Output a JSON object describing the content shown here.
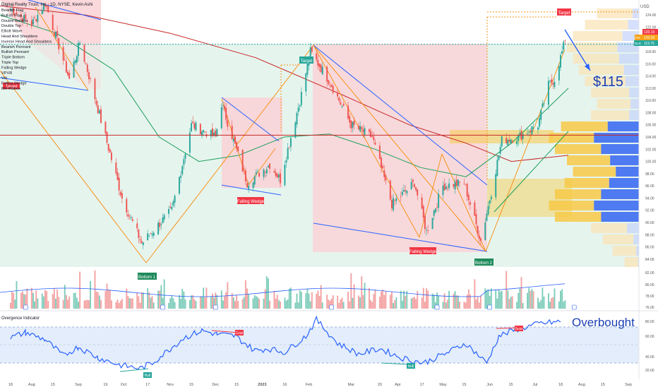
{
  "header": {
    "title": "Digital Realty Trust, Inc., 1D, NYSE, Kevin Ashi"
  },
  "currency": "USD",
  "pattern_menu": [
    "Bearish Flag",
    "Bullish Flag",
    "Double Bottom",
    "Double Top",
    "Elliott Wave",
    "Head And Shoulders",
    "Inverse Head And Shoulders",
    "Bearish Pennant",
    "Bullish Pennant",
    "Triple Bottom",
    "Triple Top",
    "Falling Wedge",
    "VPVR",
    "Vol",
    "Falling Wedge",
    "MA Ribbon"
  ],
  "annotations": {
    "price_target_note": "$115",
    "overbought_note": "Overbought"
  },
  "labels": {
    "target": "Target",
    "falling_wedge": "Falling Wedge",
    "bottom1": "Bottom 1",
    "bottom2": "Bottom 2",
    "bear": "Bear",
    "bull": "Bull"
  },
  "price_badges": [
    {
      "text": "120.15",
      "color": "#f23645"
    },
    {
      "text": "120.00",
      "color": "#f7a21b"
    },
    {
      "text": "119.76",
      "color": "#26a69a"
    }
  ],
  "badge_tags": {
    "pre": "Pre",
    "dlr": "DLR"
  },
  "colors": {
    "up": "#26a69a",
    "down": "#ef5350",
    "orange": "#f7931a",
    "blue_line": "#2962ff",
    "ma_red": "#c62828",
    "ma_green": "#1b9e5a",
    "rsi_line": "#2962ff"
  },
  "chart_data": [
    {
      "type": "candlestick",
      "title": "Digital Realty Trust, Inc., 1D, NYSE",
      "ylim": [
        83,
        127
      ],
      "y_ticks": [
        "84.00",
        "86.00",
        "88.00",
        "90.00",
        "92.00",
        "94.00",
        "96.00",
        "98.00",
        "100.00",
        "102.00",
        "104.00",
        "106.00",
        "108.00",
        "110.00",
        "112.00",
        "114.00",
        "116.00",
        "118.00",
        "120.00",
        "122.00",
        "124.00"
      ],
      "x_ticks": [
        "18",
        "Aug",
        "15",
        "Sep",
        "19",
        "Oct",
        "17",
        "Nov",
        "15",
        "Dec",
        "15",
        "2023",
        "16",
        "Feb",
        "Mar",
        "20",
        "Apr",
        "17",
        "May",
        "15",
        "Jun",
        "15",
        "Jul",
        "18",
        "Aug",
        "15",
        "Sep"
      ],
      "swings": [
        {
          "date": "2022-07-18",
          "close": 125.0
        },
        {
          "date": "2022-08-01",
          "close": 122.5
        },
        {
          "date": "2022-08-10",
          "close": 126.0
        },
        {
          "date": "2022-08-26",
          "close": 113.5
        },
        {
          "date": "2022-09-02",
          "close": 119.5
        },
        {
          "date": "2022-09-30",
          "close": 94.0
        },
        {
          "date": "2022-10-13",
          "close": 86.6
        },
        {
          "date": "2022-11-02",
          "close": 92.0
        },
        {
          "date": "2022-11-15",
          "close": 106.0
        },
        {
          "date": "2022-12-01",
          "close": 104.0
        },
        {
          "date": "2022-12-05",
          "close": 109.5
        },
        {
          "date": "2022-12-22",
          "close": 96.5
        },
        {
          "date": "2023-01-06",
          "close": 99.5
        },
        {
          "date": "2023-01-13",
          "close": 97.0
        },
        {
          "date": "2023-01-27",
          "close": 111.0
        },
        {
          "date": "2023-02-02",
          "close": 118.0
        },
        {
          "date": "2023-02-15",
          "close": 113.0
        },
        {
          "date": "2023-03-01",
          "close": 106.0
        },
        {
          "date": "2023-03-15",
          "close": 104.0
        },
        {
          "date": "2023-03-28",
          "close": 93.0
        },
        {
          "date": "2023-04-12",
          "close": 96.5
        },
        {
          "date": "2023-04-20",
          "close": 88.5
        },
        {
          "date": "2023-05-01",
          "close": 96.0
        },
        {
          "date": "2023-05-15",
          "close": 96.5
        },
        {
          "date": "2023-05-26",
          "close": 87.0
        },
        {
          "date": "2023-06-02",
          "close": 95.0
        },
        {
          "date": "2023-06-09",
          "close": 103.5
        },
        {
          "date": "2023-06-20",
          "close": 104.0
        },
        {
          "date": "2023-07-03",
          "close": 106.0
        },
        {
          "date": "2023-07-10",
          "close": 112.5
        },
        {
          "date": "2023-07-14",
          "close": 113.5
        },
        {
          "date": "2023-07-21",
          "close": 119.76
        }
      ],
      "horizontal_line": 104.3,
      "target_level": 124.5,
      "projection": {
        "from": 121.5,
        "to": 115.5
      },
      "moving_averages": [
        {
          "name": "MA Ribbon (red)",
          "points": [
            [
              0,
              125.5
            ],
            [
              0.15,
              124
            ],
            [
              0.3,
              121
            ],
            [
              0.45,
              117
            ],
            [
              0.6,
              111
            ],
            [
              0.72,
              106
            ],
            [
              0.82,
              103
            ],
            [
              0.9,
              100
            ],
            [
              1,
              101
            ]
          ]
        },
        {
          "name": "MA Ribbon (green)",
          "points": [
            [
              0,
              124
            ],
            [
              0.1,
              121
            ],
            [
              0.2,
              115
            ],
            [
              0.28,
              104
            ],
            [
              0.35,
              100
            ],
            [
              0.42,
              101
            ],
            [
              0.5,
              104
            ],
            [
              0.58,
              104.5
            ],
            [
              0.66,
              102
            ],
            [
              0.74,
              99
            ],
            [
              0.82,
              97.5
            ],
            [
              0.9,
              103
            ],
            [
              1,
              112
            ]
          ]
        }
      ],
      "annotations": [
        "Target",
        "Target",
        "Target",
        "Falling Wedge",
        "Falling Wedge",
        "Bottom 1",
        "Bottom 2",
        "$115"
      ]
    },
    {
      "type": "bar",
      "title": "Vol",
      "ylim": [
        75,
        85
      ],
      "y_ticks": [
        "76.00",
        "78.00",
        "80.00",
        "82.00"
      ]
    },
    {
      "type": "line",
      "title": "Overgence Indicator",
      "ylim": [
        15,
        85
      ],
      "y_ticks": [
        "20.00",
        "40.00",
        "60.00",
        "80.00"
      ],
      "overbought_band": [
        30,
        70
      ],
      "series": [
        {
          "name": "",
          "x": [
            "2022-07-18",
            "2022-07-28",
            "2022-08-10",
            "2022-08-22",
            "2022-09-01",
            "2022-09-14",
            "2022-09-28",
            "2022-10-12",
            "2022-10-20",
            "2022-11-01",
            "2022-11-10",
            "2022-11-22",
            "2022-12-02",
            "2022-12-14",
            "2022-12-27",
            "2023-01-05",
            "2023-01-16",
            "2023-01-30",
            "2023-02-06",
            "2023-02-20",
            "2023-03-06",
            "2023-03-20",
            "2023-04-03",
            "2023-04-18",
            "2023-05-02",
            "2023-05-16",
            "2023-05-30",
            "2023-06-07",
            "2023-06-20",
            "2023-07-05",
            "2023-07-18"
          ],
          "values": [
            58,
            64,
            56,
            38,
            48,
            36,
            28,
            24,
            30,
            46,
            58,
            66,
            62,
            60,
            44,
            46,
            42,
            60,
            78,
            52,
            40,
            46,
            36,
            30,
            40,
            52,
            30,
            60,
            68,
            74,
            76
          ]
        }
      ],
      "annotations": [
        "Bull",
        "Bear",
        "Bull",
        "Bear",
        "Overbought"
      ]
    }
  ]
}
